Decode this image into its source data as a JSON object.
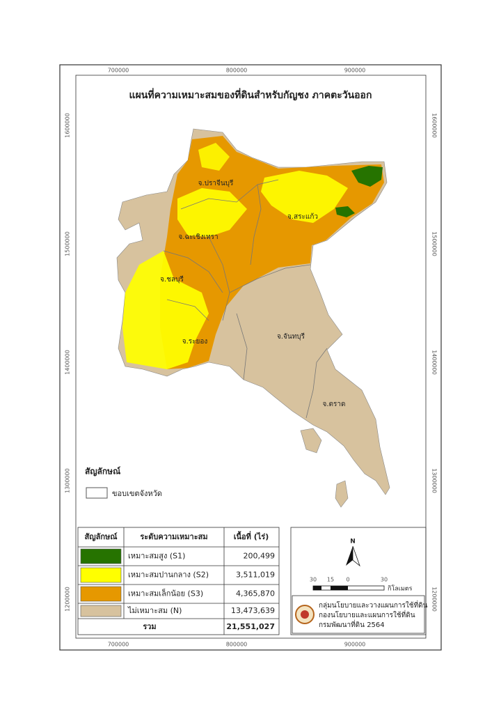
{
  "title": "แผนที่ความเหมาะสมของที่ดินสำหรับกัญชง ภาคตะวันออก",
  "grid": {
    "x_labels": [
      "700000",
      "800000",
      "900000"
    ],
    "y_labels": [
      "1600000",
      "1500000",
      "1400000",
      "1300000",
      "1200000"
    ]
  },
  "provinces": [
    "จ.ปราจีนบุรี",
    "จ.สระแก้ว",
    "จ.ฉะเชิงเทรา",
    "จ.ชลบุรี",
    "จ.ระยอง",
    "จ.จันทบุรี",
    "จ.ตราด"
  ],
  "legend": {
    "title": "สัญลักษณ์",
    "boundary": "ขอบเขตจังหวัด"
  },
  "table": {
    "header": [
      "สัญลักษณ์",
      "ระดับความเหมาะสม",
      "เนื้อที่ (ไร่)"
    ],
    "rows": [
      {
        "color": "#267300",
        "name": "เหมาะสมสูง (S1)",
        "area": "200,499"
      },
      {
        "color": "#ffff00",
        "name": "เหมาะสมปานกลาง (S2)",
        "area": "3,511,019"
      },
      {
        "color": "#e69800",
        "name": "เหมาะสมเล็กน้อย (S3)",
        "area": "4,365,870"
      },
      {
        "color": "#d7c29e",
        "name": "ไม่เหมาะสม (N)",
        "area": "13,473,639"
      }
    ],
    "total": {
      "label": "รวม",
      "area": "21,551,027"
    }
  },
  "north": "N",
  "scale": {
    "labels": [
      "30",
      "15",
      "0",
      "30"
    ],
    "unit": "กิโลเมตร"
  },
  "credit": [
    "กลุ่มนโยบายและวางแผนการใช้ที่ดิน",
    "กองนโยบายและแผนการใช้ที่ดิน",
    "กรมพัฒนาที่ดิน 2564"
  ]
}
